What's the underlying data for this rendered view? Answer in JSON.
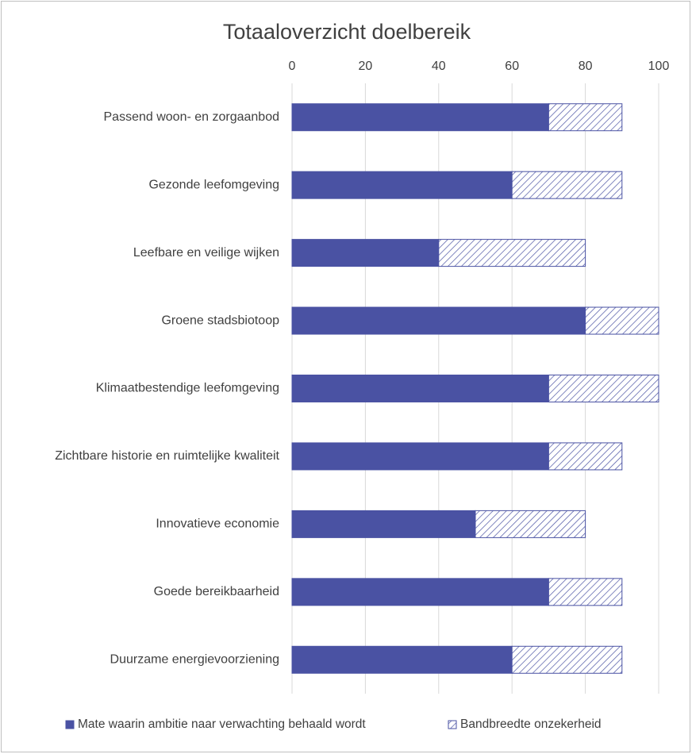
{
  "chart_data": {
    "type": "stacked_barh",
    "title": "Totaaloverzicht doelbereik",
    "categories": [
      "Passend woon- en zorgaanbod",
      "Gezonde leefomgeving",
      "Leefbare en veilige wijken",
      "Groene stadsbiotoop",
      "Klimaatbestendige leefomgeving",
      "Zichtbare historie en ruimtelijke kwaliteit",
      "Innovatieve economie",
      "Goede bereikbaarheid",
      "Duurzame energievoorziening"
    ],
    "series": [
      {
        "name": "Mate waarin ambitie naar verwachting behaald wordt",
        "color": "#4a52a3",
        "pattern": "solid",
        "values": [
          70,
          60,
          40,
          80,
          70,
          70,
          50,
          70,
          60
        ]
      },
      {
        "name": "Bandbreedte onzekerheid",
        "color": "#4a52a3",
        "pattern": "hatch",
        "values": [
          20,
          30,
          40,
          20,
          30,
          20,
          30,
          20,
          30
        ]
      }
    ],
    "xlim": [
      0,
      100
    ],
    "xticks": [
      0,
      20,
      40,
      60,
      80,
      100
    ],
    "grid": true,
    "legend": "bottom"
  }
}
